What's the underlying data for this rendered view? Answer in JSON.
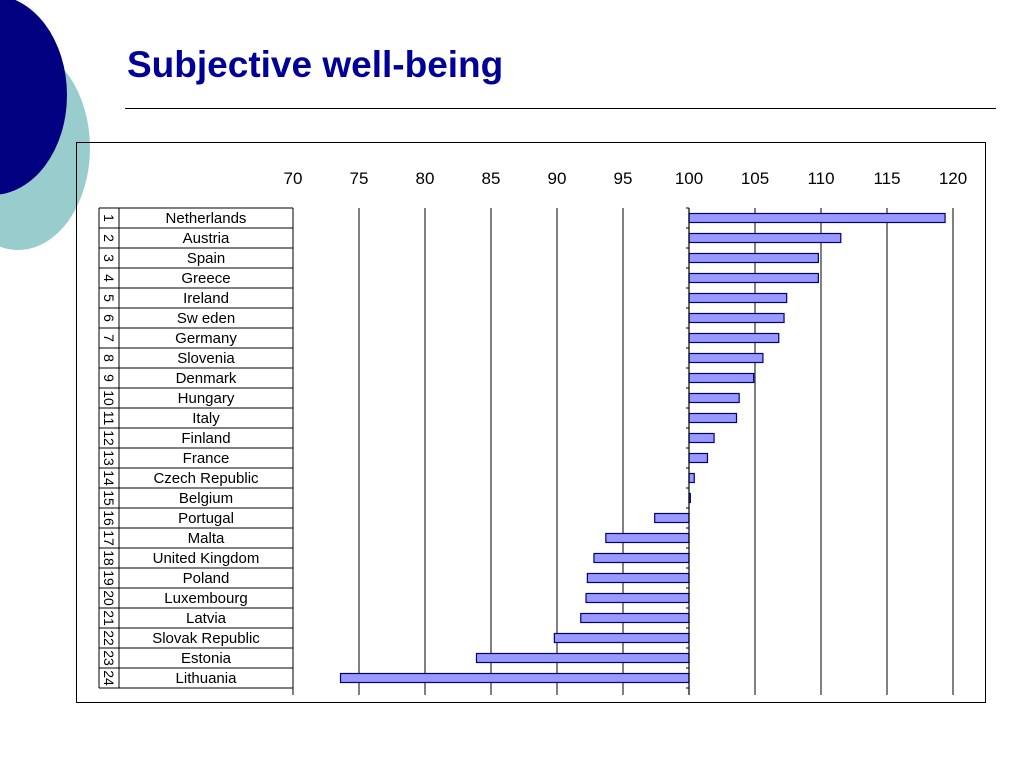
{
  "slide": {
    "title": "Subjective well-being"
  },
  "colors": {
    "title": "#000099",
    "circle_dark": "#000080",
    "circle_light": "#99cccc",
    "bar_fill": "#9999ff",
    "bar_stroke": "#000080"
  },
  "chart_data": {
    "type": "bar",
    "orientation": "horizontal",
    "baseline": 100,
    "xlim": [
      70,
      120
    ],
    "xticks": [
      70,
      75,
      80,
      85,
      90,
      95,
      100,
      105,
      110,
      115,
      120
    ],
    "xtick_position": "top",
    "grid": true,
    "title": "",
    "xlabel": "",
    "ylabel": "",
    "ranks": [
      "1",
      "2",
      "3",
      "4",
      "5",
      "6",
      "7",
      "8",
      "9",
      "10",
      "11",
      "12",
      "13",
      "14",
      "15",
      "16",
      "17",
      "18",
      "19",
      "20",
      "21",
      "22",
      "23",
      "24"
    ],
    "categories": [
      "Netherlands",
      "Austria",
      "Spain",
      "Greece",
      "Ireland",
      "Sw eden",
      "Germany",
      "Slovenia",
      "Denmark",
      "Hungary",
      "Italy",
      "Finland",
      "France",
      "Czech Republic",
      "Belgium",
      "Portugal",
      "Malta",
      "United Kingdom",
      "Poland",
      "Luxembourg",
      "Latvia",
      "Slovak Republic",
      "Estonia",
      "Lithuania"
    ],
    "values": [
      119.4,
      111.5,
      109.8,
      109.8,
      107.4,
      107.2,
      106.8,
      105.6,
      104.9,
      103.8,
      103.6,
      101.9,
      101.4,
      100.4,
      100.1,
      97.4,
      93.7,
      92.8,
      92.3,
      92.2,
      91.8,
      89.8,
      83.9,
      73.6
    ]
  }
}
